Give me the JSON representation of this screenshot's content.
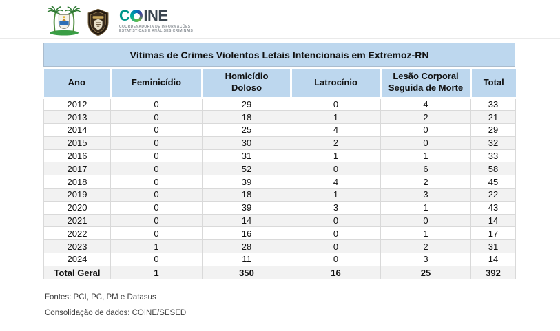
{
  "header": {
    "coine": {
      "name_prefix": "C",
      "name_suffix": "INE",
      "subtitle_line1": "COORDENADORIA DE INFORMAÇÕES",
      "subtitle_line2": "ESTATÍSTICAS E ANÁLISES CRIMINAIS"
    }
  },
  "title": "Vítimas de Crimes Violentos Letais Intencionais em Extremoz-RN",
  "table": {
    "columns": [
      "Ano",
      "Feminicídio",
      "Homicídio Doloso",
      "Latrocínio",
      "Lesão Corporal Seguida de Morte",
      "Total"
    ],
    "rows": [
      [
        "2012",
        "0",
        "29",
        "0",
        "4",
        "33"
      ],
      [
        "2013",
        "0",
        "18",
        "1",
        "2",
        "21"
      ],
      [
        "2014",
        "0",
        "25",
        "4",
        "0",
        "29"
      ],
      [
        "2015",
        "0",
        "30",
        "2",
        "0",
        "32"
      ],
      [
        "2016",
        "0",
        "31",
        "1",
        "1",
        "33"
      ],
      [
        "2017",
        "0",
        "52",
        "0",
        "6",
        "58"
      ],
      [
        "2018",
        "0",
        "39",
        "4",
        "2",
        "45"
      ],
      [
        "2019",
        "0",
        "18",
        "1",
        "3",
        "22"
      ],
      [
        "2020",
        "0",
        "39",
        "3",
        "1",
        "43"
      ],
      [
        "2021",
        "0",
        "14",
        "0",
        "0",
        "14"
      ],
      [
        "2022",
        "0",
        "16",
        "0",
        "1",
        "17"
      ],
      [
        "2023",
        "1",
        "28",
        "0",
        "2",
        "31"
      ],
      [
        "2024",
        "0",
        "11",
        "0",
        "3",
        "14"
      ]
    ],
    "total_row": [
      "Total Geral",
      "1",
      "350",
      "16",
      "25",
      "392"
    ]
  },
  "chart_data": {
    "type": "table",
    "title": "Vítimas de Crimes Violentos Letais Intencionais em Extremoz-RN",
    "columns": [
      "Ano",
      "Feminicídio",
      "Homicídio Doloso",
      "Latrocínio",
      "Lesão Corporal Seguida de Morte",
      "Total"
    ],
    "rows": [
      [
        "2012",
        0,
        29,
        0,
        4,
        33
      ],
      [
        "2013",
        0,
        18,
        1,
        2,
        21
      ],
      [
        "2014",
        0,
        25,
        4,
        0,
        29
      ],
      [
        "2015",
        0,
        30,
        2,
        0,
        32
      ],
      [
        "2016",
        0,
        31,
        1,
        1,
        33
      ],
      [
        "2017",
        0,
        52,
        0,
        6,
        58
      ],
      [
        "2018",
        0,
        39,
        4,
        2,
        45
      ],
      [
        "2019",
        0,
        18,
        1,
        3,
        22
      ],
      [
        "2020",
        0,
        39,
        3,
        1,
        43
      ],
      [
        "2021",
        0,
        14,
        0,
        0,
        14
      ],
      [
        "2022",
        0,
        16,
        0,
        1,
        17
      ],
      [
        "2023",
        1,
        28,
        0,
        2,
        31
      ],
      [
        "2024",
        0,
        11,
        0,
        3,
        14
      ]
    ],
    "total_row": [
      "Total Geral",
      1,
      350,
      16,
      25,
      392
    ]
  },
  "footer": {
    "sources": "Fontes: PCI, PC, PM e Datasus",
    "consolidation": "Consolidação de dados: COINE/SESED"
  },
  "colors": {
    "header_bg": "#BDD7EE",
    "row_alt_bg": "#F2F2F2",
    "grid_border": "#D9D9D9",
    "total_border": "#A6A6A6"
  }
}
